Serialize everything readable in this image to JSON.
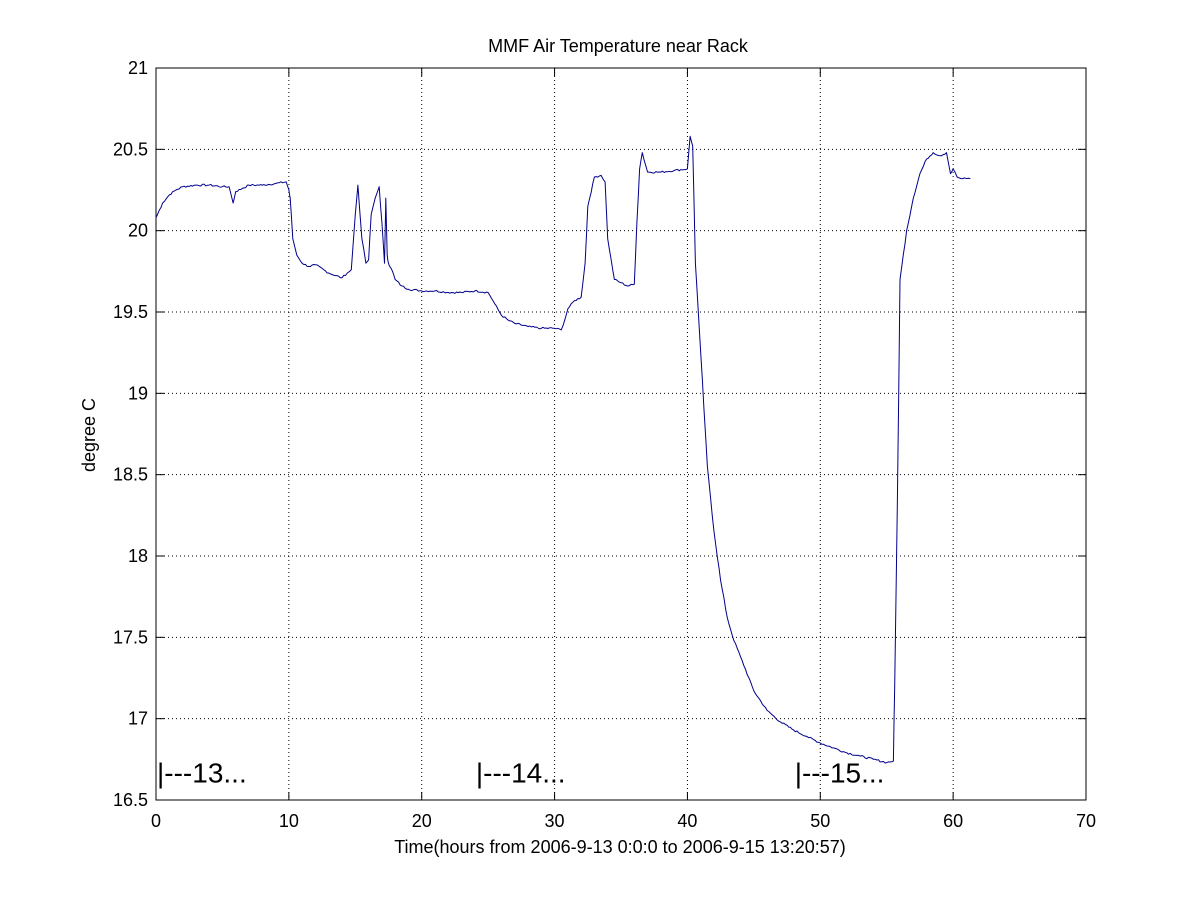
{
  "chart_data": {
    "type": "line",
    "title": "MMF Air Temperature near Rack",
    "xlabel": "Time(hours from 2006-9-13 0:0:0 to 2006-9-15 13:20:57)",
    "ylabel": "degree C",
    "xlim": [
      0,
      70
    ],
    "ylim": [
      16.5,
      21
    ],
    "xticks": [
      0,
      10,
      20,
      30,
      40,
      50,
      60,
      70
    ],
    "yticks": [
      16.5,
      17,
      17.5,
      18,
      18.5,
      19,
      19.5,
      20,
      20.5,
      21
    ],
    "xtick_labels": [
      "0",
      "10",
      "20",
      "30",
      "40",
      "50",
      "60",
      "70"
    ],
    "ytick_labels": [
      "16.5",
      "17",
      "17.5",
      "18",
      "18.5",
      "19",
      "19.5",
      "20",
      "20.5",
      "21"
    ],
    "grid": true,
    "line_color": "#00008b",
    "annotations": [
      {
        "text": "|---13...",
        "x": 0,
        "y": 16.67
      },
      {
        "text": "|---14...",
        "x": 24,
        "y": 16.67
      },
      {
        "text": "|---15...",
        "x": 48,
        "y": 16.67
      }
    ],
    "series": [
      {
        "name": "Air Temperature",
        "x": [
          0,
          0.5,
          1,
          1.5,
          2,
          3,
          4,
          5,
          5.5,
          5.8,
          6,
          6.5,
          7,
          8,
          9,
          9.8,
          10,
          10.1,
          10.3,
          10.6,
          11,
          11.5,
          12,
          13,
          14,
          14.4,
          14.7,
          15,
          15.2,
          15.5,
          15.8,
          16,
          16.2,
          16.5,
          16.8,
          17,
          17.2,
          17.3,
          17.4,
          17.5,
          17.6,
          17.8,
          18,
          18.5,
          19,
          20,
          21,
          22,
          23,
          24,
          25,
          25.5,
          26,
          26.5,
          27,
          28,
          29,
          30,
          30.5,
          30.8,
          31,
          31.5,
          32,
          32.3,
          32.5,
          33,
          33.5,
          33.8,
          34,
          34.5,
          35,
          35.5,
          36,
          36.2,
          36.4,
          36.6,
          37,
          38,
          39,
          40,
          40.2,
          40.4,
          40.6,
          41,
          41.5,
          42,
          42.5,
          43,
          43.5,
          44,
          45,
          46,
          47,
          48,
          49,
          50,
          51,
          52,
          53,
          54,
          55,
          55.5,
          55.6,
          55.8,
          56,
          56.5,
          57,
          57.5,
          58,
          58.5,
          59,
          59.5,
          59.8,
          60,
          60.3,
          60.6,
          61,
          61.3
        ],
        "y": [
          20.08,
          20.17,
          20.22,
          20.25,
          20.27,
          20.28,
          20.28,
          20.27,
          20.27,
          20.17,
          20.24,
          20.26,
          20.28,
          20.28,
          20.29,
          20.3,
          20.25,
          20.2,
          19.95,
          19.85,
          19.8,
          19.78,
          19.79,
          19.74,
          19.71,
          19.74,
          19.76,
          20.1,
          20.28,
          19.95,
          19.8,
          19.82,
          20.1,
          20.2,
          20.27,
          20.05,
          19.8,
          20.2,
          19.85,
          19.8,
          19.78,
          19.75,
          19.7,
          19.66,
          19.64,
          19.63,
          19.63,
          19.62,
          19.62,
          19.63,
          19.62,
          19.55,
          19.48,
          19.45,
          19.43,
          19.41,
          19.4,
          19.4,
          19.39,
          19.46,
          19.52,
          19.57,
          19.59,
          19.8,
          20.15,
          20.33,
          20.34,
          20.3,
          19.95,
          19.7,
          19.68,
          19.66,
          19.67,
          20.05,
          20.38,
          20.48,
          20.36,
          20.36,
          20.37,
          20.38,
          20.58,
          20.52,
          19.8,
          19.25,
          18.55,
          18.15,
          17.85,
          17.62,
          17.48,
          17.38,
          17.17,
          17.05,
          16.98,
          16.93,
          16.89,
          16.85,
          16.82,
          16.79,
          16.77,
          16.75,
          16.73,
          16.74,
          17.2,
          18.3,
          19.7,
          20.0,
          20.2,
          20.35,
          20.44,
          20.48,
          20.46,
          20.48,
          20.35,
          20.38,
          20.33,
          20.32,
          20.32,
          20.32
        ]
      }
    ]
  }
}
